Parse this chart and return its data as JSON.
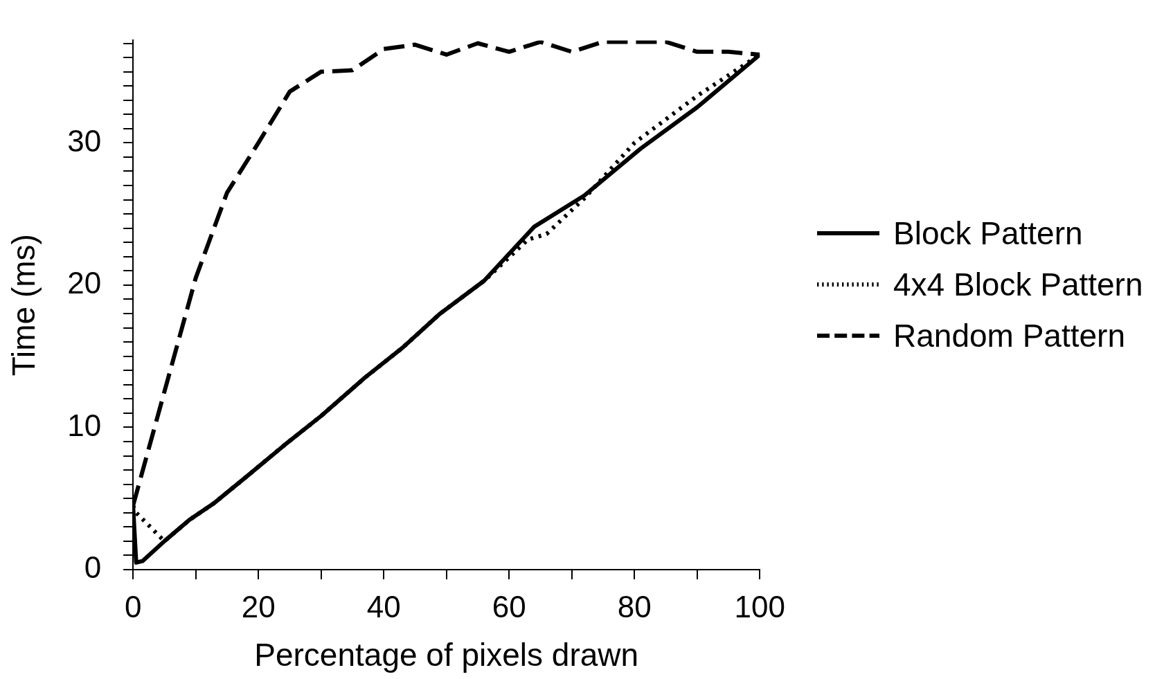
{
  "chart_data": {
    "type": "line",
    "xlabel": "Percentage of pixels drawn",
    "ylabel": "Time (ms)",
    "xlim": [
      0,
      100
    ],
    "xticks": [
      0,
      {
        "value": 10,
        "label": null
      },
      20,
      {
        "value": 30,
        "label": null
      },
      40,
      {
        "value": 50,
        "label": null
      },
      60,
      {
        "value": 70,
        "label": null
      },
      80,
      {
        "value": 90,
        "label": null
      },
      100
    ],
    "ylim": [
      0,
      37.2
    ],
    "yticks": [
      0,
      {
        "value": 1,
        "label": null
      },
      {
        "value": 2,
        "label": null
      },
      {
        "value": 3,
        "label": null
      },
      {
        "value": 4,
        "label": null
      },
      {
        "value": 5,
        "label": null
      },
      {
        "value": 6,
        "label": null
      },
      {
        "value": 7,
        "label": null
      },
      {
        "value": 8,
        "label": null
      },
      {
        "value": 9,
        "label": null
      },
      10,
      {
        "value": 11,
        "label": null
      },
      {
        "value": 12,
        "label": null
      },
      {
        "value": 13,
        "label": null
      },
      {
        "value": 14,
        "label": null
      },
      {
        "value": 15,
        "label": null
      },
      {
        "value": 16,
        "label": null
      },
      {
        "value": 17,
        "label": null
      },
      {
        "value": 18,
        "label": null
      },
      {
        "value": 19,
        "label": null
      },
      20,
      {
        "value": 21,
        "label": null
      },
      {
        "value": 22,
        "label": null
      },
      {
        "value": 23,
        "label": null
      },
      {
        "value": 24,
        "label": null
      },
      {
        "value": 25,
        "label": null
      },
      {
        "value": 26,
        "label": null
      },
      {
        "value": 27,
        "label": null
      },
      {
        "value": 28,
        "label": null
      },
      {
        "value": 29,
        "label": null
      },
      30,
      {
        "value": 31,
        "label": null
      },
      {
        "value": 32,
        "label": null
      },
      {
        "value": 33,
        "label": null
      },
      {
        "value": 34,
        "label": null
      },
      {
        "value": 35,
        "label": null
      },
      {
        "value": 36,
        "label": null
      },
      {
        "value": 37,
        "label": null
      }
    ],
    "grid": false,
    "legend": "right",
    "marker": "none",
    "series": [
      {
        "name": "Block Pattern",
        "color": "#000000",
        "line_style": "solid",
        "x": [
          0,
          0.5,
          1.5,
          5,
          9,
          13,
          18,
          24,
          30,
          37,
          43,
          49,
          56,
          64,
          72,
          81,
          90,
          100
        ],
        "values": [
          4.5,
          0.5,
          0.6,
          2,
          3.5,
          4.7,
          6.5,
          8.7,
          10.8,
          13.5,
          15.6,
          18,
          20.3,
          24.1,
          26.3,
          29.6,
          32.5,
          36.2
        ]
      },
      {
        "name": "4x4 Block Pattern",
        "color": "#000000",
        "line_style": "dotted",
        "x": [
          0,
          0.5,
          5,
          9,
          13,
          18,
          24,
          30,
          37,
          43,
          49,
          56,
          63,
          66,
          72,
          80,
          90,
          100
        ],
        "values": [
          4.5,
          4,
          2,
          3.5,
          4.7,
          6.5,
          8.7,
          10.8,
          13.5,
          15.6,
          18,
          20.3,
          23.2,
          23.6,
          26.1,
          30,
          33.3,
          36.2
        ]
      },
      {
        "name": "Random Pattern",
        "color": "#000000",
        "line_style": "dashed",
        "x": [
          0,
          5,
          10,
          15,
          20,
          25,
          30,
          35,
          40,
          45,
          50,
          55,
          60,
          65,
          70,
          75,
          80,
          85,
          90,
          95,
          100
        ],
        "values": [
          4.5,
          12.5,
          20.5,
          26.5,
          30,
          33.6,
          35,
          35.1,
          36.6,
          36.9,
          36.2,
          37,
          36.4,
          37.1,
          36.4,
          37.1,
          37.1,
          37.1,
          36.4,
          36.4,
          36.2
        ]
      }
    ]
  }
}
